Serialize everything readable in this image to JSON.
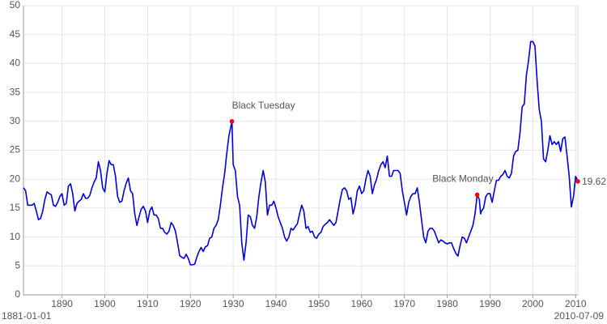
{
  "chart_data": {
    "type": "line",
    "x": [
      1881,
      1881.5,
      1882,
      1883,
      1883.5,
      1884,
      1884.5,
      1885,
      1885.5,
      1886,
      1886.5,
      1887,
      1887.5,
      1888,
      1888.5,
      1889,
      1889.5,
      1890,
      1890.5,
      1891,
      1891.5,
      1892,
      1892.5,
      1893,
      1893.5,
      1894,
      1894.5,
      1895,
      1895.5,
      1896,
      1896.5,
      1897,
      1897.5,
      1898,
      1898.5,
      1899,
      1899.5,
      1900,
      1900.5,
      1901,
      1901.5,
      1902,
      1902.5,
      1903,
      1903.5,
      1904,
      1904.5,
      1905,
      1905.5,
      1906,
      1906.5,
      1907,
      1907.5,
      1908,
      1908.5,
      1909,
      1909.5,
      1910,
      1910.5,
      1911,
      1911.5,
      1912,
      1912.5,
      1913,
      1913.5,
      1914,
      1914.5,
      1915,
      1915.5,
      1916,
      1916.5,
      1917,
      1917.5,
      1918,
      1918.5,
      1919,
      1919.5,
      1920,
      1920.5,
      1921,
      1921.5,
      1922,
      1922.5,
      1923,
      1923.5,
      1924,
      1924.5,
      1925,
      1925.5,
      1926,
      1926.5,
      1927,
      1927.5,
      1928,
      1928.5,
      1929,
      1929.7,
      1930,
      1930.5,
      1931,
      1931.5,
      1932,
      1932.5,
      1933,
      1933.5,
      1934,
      1934.5,
      1935,
      1935.5,
      1936,
      1936.5,
      1937,
      1937.5,
      1938,
      1938.5,
      1939,
      1939.5,
      1940,
      1940.5,
      1941,
      1941.5,
      1942,
      1942.5,
      1943,
      1943.5,
      1944,
      1944.5,
      1945,
      1945.5,
      1946,
      1946.5,
      1947,
      1947.5,
      1948,
      1948.5,
      1949,
      1949.5,
      1950,
      1950.5,
      1951,
      1951.5,
      1952,
      1952.5,
      1953,
      1953.5,
      1954,
      1954.5,
      1955,
      1955.5,
      1956,
      1956.5,
      1957,
      1957.5,
      1958,
      1958.5,
      1959,
      1959.5,
      1960,
      1960.5,
      1961,
      1961.5,
      1962,
      1962.5,
      1963,
      1963.5,
      1964,
      1964.5,
      1965,
      1965.5,
      1966,
      1966.5,
      1967,
      1967.5,
      1968,
      1968.5,
      1969,
      1969.5,
      1970,
      1970.5,
      1971,
      1971.5,
      1972,
      1972.5,
      1973,
      1973.5,
      1974,
      1974.5,
      1975,
      1975.5,
      1976,
      1976.5,
      1977,
      1977.5,
      1978,
      1978.5,
      1979,
      1979.5,
      1980,
      1980.5,
      1981,
      1981.5,
      1982,
      1982.5,
      1983,
      1983.5,
      1984,
      1984.5,
      1985,
      1985.5,
      1986,
      1986.5,
      1987,
      1987.5,
      1987.8,
      1988,
      1988.5,
      1989,
      1989.5,
      1990,
      1990.5,
      1991,
      1991.5,
      1992,
      1992.5,
      1993,
      1993.5,
      1994,
      1994.5,
      1995,
      1995.5,
      1996,
      1996.5,
      1997,
      1997.5,
      1998,
      1998.5,
      1999,
      1999.5,
      2000,
      2000.5,
      2001,
      2001.5,
      2002,
      2002.5,
      2003,
      2003.5,
      2004,
      2004.5,
      2005,
      2005.5,
      2006,
      2006.5,
      2007,
      2007.5,
      2008,
      2008.5,
      2009,
      2009.5,
      2010,
      2010.52
    ],
    "values": [
      18.5,
      18,
      15.5,
      15.5,
      15.8,
      14.5,
      13,
      13.2,
      14.5,
      16.5,
      17.8,
      17.5,
      17.3,
      15.5,
      15.3,
      16,
      17,
      17.5,
      15.5,
      15.8,
      18.8,
      19.2,
      17.5,
      14.5,
      15.8,
      16.2,
      16.5,
      17.5,
      16.7,
      16.7,
      17.2,
      18.5,
      19.5,
      20.2,
      23,
      21.5,
      18.5,
      17.8,
      21,
      23.2,
      22.5,
      22.5,
      20.5,
      17,
      16,
      16.2,
      18,
      19.3,
      20.2,
      18,
      17.5,
      14,
      12,
      13.5,
      14.8,
      15.3,
      14.5,
      12.5,
      14.5,
      15.2,
      13.8,
      13.8,
      13.2,
      11.5,
      11.5,
      10.8,
      10.5,
      11,
      12.5,
      12,
      11,
      9,
      6.8,
      6.5,
      6.3,
      7,
      6.3,
      5.2,
      5.2,
      5.3,
      6.5,
      7.5,
      8.2,
      7.5,
      8.3,
      8.5,
      9.8,
      10,
      11.5,
      12,
      13,
      15.5,
      18.5,
      21,
      24.5,
      27.5,
      30,
      22.5,
      21.5,
      17,
      15.5,
      9,
      6,
      9,
      13.8,
      13.5,
      12,
      11.5,
      13.5,
      17,
      19.5,
      21.5,
      19.5,
      13.8,
      15.5,
      15.5,
      16.2,
      15,
      13.5,
      12.5,
      11.5,
      10,
      9.3,
      10,
      11.5,
      11.2,
      11.8,
      12.3,
      14,
      15.5,
      14.5,
      11.5,
      11.8,
      10.8,
      11,
      10,
      9.8,
      10.5,
      10.8,
      11.8,
      12.2,
      12.5,
      13,
      12.5,
      12,
      12.5,
      14.5,
      16.5,
      18.2,
      18.5,
      18,
      16.5,
      16.8,
      14,
      15.5,
      18,
      18.8,
      17.5,
      18,
      20,
      21.5,
      20.5,
      17.5,
      19,
      20,
      21.5,
      22.5,
      23,
      22,
      24,
      20.5,
      20.5,
      21.5,
      21.5,
      21.5,
      21,
      18,
      16,
      13.8,
      16,
      17,
      17.5,
      17.5,
      18.5,
      16,
      13,
      10,
      9,
      11,
      11.5,
      11.5,
      11,
      10,
      9,
      9.5,
      9.3,
      9,
      8.8,
      9,
      9,
      8,
      7.2,
      6.7,
      8.5,
      10,
      9.8,
      9,
      10,
      11,
      12,
      14,
      17.3,
      16.5,
      14,
      14.5,
      15,
      17,
      17.5,
      17.5,
      16,
      18,
      19.8,
      19.8,
      20.5,
      20.8,
      21.5,
      20.5,
      20.2,
      21,
      24,
      24.8,
      25,
      28,
      32.5,
      33,
      38,
      40.5,
      43.8,
      43.8,
      43,
      37,
      32,
      30,
      23.5,
      23,
      25,
      27.5,
      26,
      26.5,
      26,
      26.5,
      24.8,
      27,
      27.3,
      24,
      20.5,
      15.2,
      17,
      20.5,
      19.62
    ],
    "color": "#0000dd",
    "xlim": [
      1881,
      2010.52
    ],
    "xticks": [
      1890,
      1900,
      1910,
      1920,
      1930,
      1940,
      1950,
      1960,
      1970,
      1980,
      1990,
      2000,
      2010
    ],
    "ylim": [
      0,
      50
    ],
    "yticks": [
      0,
      5,
      10,
      15,
      20,
      25,
      30,
      35,
      40,
      45,
      50
    ],
    "grid": true,
    "annotations": [
      {
        "text": "Black Tuesday",
        "x": 1929.7,
        "y": 30,
        "color": "#ff0000"
      },
      {
        "text": "Black Monday",
        "x": 1987,
        "y": 17.3,
        "color": "#ff0000"
      },
      {
        "x": 2010.52,
        "y": 19.62,
        "color": "#ff0000"
      }
    ],
    "date_range": [
      "1881-01-01",
      "2010-07-09"
    ]
  }
}
